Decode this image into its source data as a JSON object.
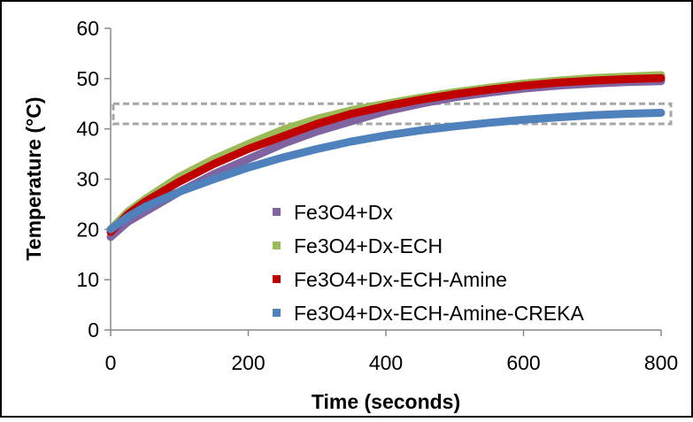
{
  "chart_data": {
    "type": "line",
    "title": "",
    "xlabel": "Time (seconds)",
    "ylabel": "Temperature (°C)",
    "xlim": [
      0,
      800
    ],
    "ylim": [
      0,
      60
    ],
    "xticks": [
      0,
      200,
      400,
      600,
      800
    ],
    "yticks": [
      0,
      10,
      20,
      30,
      40,
      50,
      60
    ],
    "grid": false,
    "legend_position": "center-right",
    "highlight_band": {
      "y_from": 41,
      "y_to": 45,
      "style": "dashed-gray"
    },
    "series": [
      {
        "name": "Fe3O4+Dx",
        "color": "#8064A2",
        "x": [
          0,
          25,
          50,
          100,
          150,
          200,
          250,
          300,
          350,
          400,
          450,
          500,
          550,
          600,
          650,
          700,
          750,
          800
        ],
        "y": [
          18.5,
          21.5,
          23.5,
          27.5,
          31.0,
          34.0,
          37.0,
          39.5,
          41.5,
          43.5,
          45.0,
          46.3,
          47.2,
          48.0,
          48.6,
          49.0,
          49.3,
          49.5
        ]
      },
      {
        "name": "Fe3O4+Dx-ECH",
        "color": "#9BBB59",
        "x": [
          0,
          25,
          50,
          100,
          150,
          200,
          250,
          300,
          350,
          400,
          450,
          500,
          550,
          600,
          650,
          700,
          750,
          800
        ],
        "y": [
          20.0,
          23.5,
          26.0,
          30.5,
          34.0,
          37.0,
          39.8,
          42.0,
          43.7,
          45.0,
          46.2,
          47.3,
          48.2,
          49.0,
          49.6,
          50.1,
          50.4,
          50.7
        ]
      },
      {
        "name": "Fe3O4+Dx-ECH-Amine",
        "color": "#C00000",
        "x": [
          0,
          25,
          50,
          100,
          150,
          200,
          250,
          300,
          350,
          400,
          450,
          500,
          550,
          600,
          650,
          700,
          750,
          800
        ],
        "y": [
          19.5,
          23.0,
          25.5,
          29.5,
          33.0,
          36.0,
          38.5,
          41.0,
          43.0,
          44.5,
          45.8,
          46.9,
          47.8,
          48.6,
          49.2,
          49.6,
          49.9,
          50.1
        ]
      },
      {
        "name": "Fe3O4+Dx-ECH-Amine-CREKA",
        "color": "#4F81BD",
        "x": [
          0,
          25,
          50,
          100,
          150,
          200,
          250,
          300,
          350,
          400,
          450,
          500,
          550,
          600,
          650,
          700,
          750,
          800
        ],
        "y": [
          20.0,
          22.5,
          24.5,
          27.5,
          30.0,
          32.3,
          34.3,
          36.0,
          37.5,
          38.7,
          39.7,
          40.5,
          41.2,
          41.8,
          42.3,
          42.7,
          43.0,
          43.2
        ]
      }
    ]
  }
}
